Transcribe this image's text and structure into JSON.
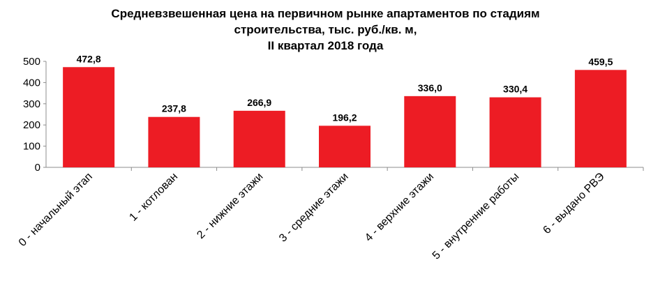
{
  "chart_data": {
    "type": "bar",
    "title": [
      "Средневзвешенная цена на первичном рынке апартаментов по стадиям",
      "строительства, тыс. руб./кв. м,",
      "II квартал 2018 года"
    ],
    "categories": [
      "0 - начальный этап",
      "1 - котлован",
      "2 - нижние этажи",
      "3 - средние этажи",
      "4 - верхние этажи",
      "5 - внутренние работы",
      "6 - выдано РВЭ"
    ],
    "values": [
      472.8,
      237.8,
      266.9,
      196.2,
      336.0,
      330.4,
      459.5
    ],
    "value_labels": [
      "472,8",
      "237,8",
      "266,9",
      "196,2",
      "336,0",
      "330,4",
      "459,5"
    ],
    "yticks": [
      "0",
      "100",
      "200",
      "300",
      "400",
      "500"
    ],
    "ylim": [
      0,
      500
    ],
    "xlabel": "",
    "ylabel": "",
    "grid": false,
    "legend": "none",
    "bar_color": "#ED1C24"
  }
}
